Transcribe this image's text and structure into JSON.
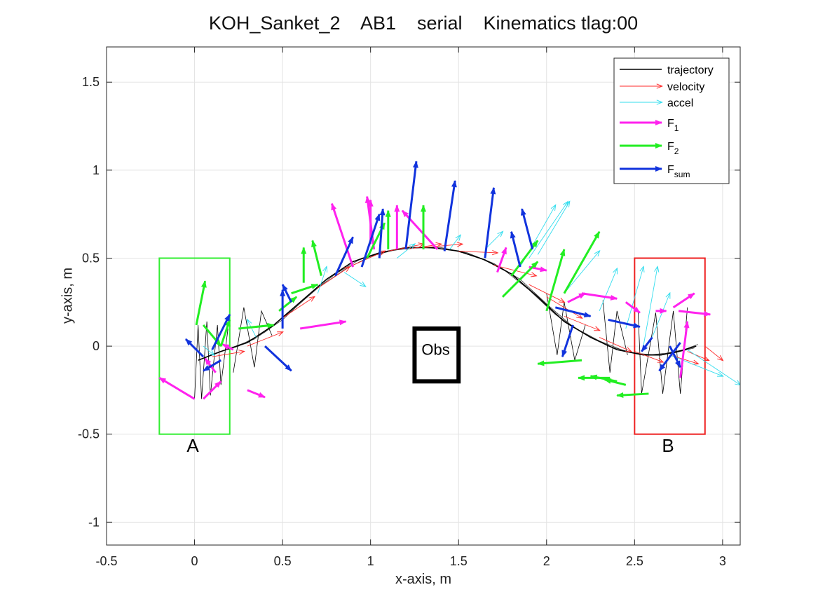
{
  "chart_data": {
    "type": "scatter",
    "title": "KOH_Sanket_2    AB1    serial    Kinematics tlag:00",
    "xlabel": "x-axis, m",
    "ylabel": "y-axis, m",
    "xlim": [
      -0.5,
      3.1
    ],
    "ylim": [
      -1.13,
      1.7
    ],
    "xticks": [
      -0.5,
      0,
      0.5,
      1,
      1.5,
      2,
      2.5,
      3
    ],
    "yticks": [
      -1,
      -0.5,
      0,
      0.5,
      1,
      1.5
    ],
    "xtick_labels": [
      "-0.5",
      "0",
      "0.5",
      "1",
      "1.5",
      "2",
      "2.5",
      "3"
    ],
    "ytick_labels": [
      "-1",
      "-0.5",
      "0",
      "0.5",
      "1",
      "1.5"
    ],
    "grid": true,
    "legend_position": "top-right",
    "legend": [
      {
        "label": "trajectory",
        "sub": "",
        "color": "#000000",
        "style": "line"
      },
      {
        "label": "velocity",
        "sub": "",
        "color": "#ff2a2a",
        "style": "arrow-thin"
      },
      {
        "label": "accel",
        "sub": "",
        "color": "#33ddee",
        "style": "arrow-thin"
      },
      {
        "label": "F",
        "sub": "1",
        "color": "#ff22ee",
        "style": "arrow-thick"
      },
      {
        "label": "F",
        "sub": "2",
        "color": "#22ee22",
        "style": "arrow-thick"
      },
      {
        "label": "F",
        "sub": "sum",
        "color": "#1133dd",
        "style": "arrow-thick"
      }
    ],
    "trajectory": {
      "x": [
        0.02,
        0.15,
        0.3,
        0.45,
        0.6,
        0.75,
        0.9,
        1.05,
        1.2,
        1.35,
        1.5,
        1.65,
        1.8,
        1.95,
        2.1,
        2.25,
        2.4,
        2.55,
        2.65,
        2.75,
        2.85
      ],
      "y": [
        -0.08,
        -0.03,
        0.02,
        0.12,
        0.25,
        0.38,
        0.48,
        0.53,
        0.56,
        0.56,
        0.54,
        0.49,
        0.41,
        0.28,
        0.14,
        0.05,
        -0.02,
        -0.05,
        -0.05,
        -0.03,
        0.0
      ]
    },
    "trajectory_bundle": [
      {
        "x": [
          0.02,
          0.12,
          0.25,
          0.4,
          0.55,
          0.7,
          0.86,
          1.0,
          1.15,
          1.3,
          1.45,
          1.6,
          1.75,
          1.9,
          2.05,
          2.2,
          2.35,
          2.5,
          2.62,
          2.72,
          2.84
        ],
        "y": [
          -0.08,
          -0.04,
          0.0,
          0.08,
          0.2,
          0.33,
          0.44,
          0.51,
          0.55,
          0.56,
          0.55,
          0.51,
          0.44,
          0.32,
          0.18,
          0.08,
          0.0,
          -0.04,
          -0.05,
          -0.04,
          -0.01
        ]
      },
      {
        "x": [
          0.02,
          0.18,
          0.34,
          0.5,
          0.65,
          0.8,
          0.95,
          1.1,
          1.25,
          1.4,
          1.55,
          1.7,
          1.85,
          2.0,
          2.15,
          2.3,
          2.45,
          2.58,
          2.68,
          2.78,
          2.86
        ],
        "y": [
          -0.08,
          -0.02,
          0.04,
          0.15,
          0.29,
          0.41,
          0.5,
          0.54,
          0.56,
          0.56,
          0.53,
          0.47,
          0.38,
          0.24,
          0.11,
          0.03,
          -0.03,
          -0.05,
          -0.04,
          -0.02,
          0.01
        ]
      }
    ],
    "sway_lines": [
      {
        "x": [
          0.0,
          0.02,
          0.04,
          0.07,
          0.09,
          0.13,
          0.15,
          0.19
        ],
        "y": [
          -0.3,
          0.12,
          -0.3,
          0.14,
          -0.28,
          0.12,
          -0.22,
          0.1
        ]
      },
      {
        "x": [
          0.22,
          0.28,
          0.34,
          0.38,
          0.44
        ],
        "y": [
          -0.15,
          0.22,
          -0.12,
          0.2,
          0.06
        ]
      },
      {
        "x": [
          2.0,
          2.06,
          2.1,
          2.16,
          2.22
        ],
        "y": [
          0.3,
          -0.05,
          0.25,
          -0.08,
          0.12
        ]
      },
      {
        "x": [
          2.32,
          2.36,
          2.4,
          2.46
        ],
        "y": [
          0.26,
          -0.15,
          0.2,
          -0.05
        ]
      },
      {
        "x": [
          2.52,
          2.54,
          2.62,
          2.66,
          2.72,
          2.76,
          2.8
        ],
        "y": [
          0.19,
          -0.27,
          0.19,
          -0.27,
          0.2,
          -0.27,
          0.22
        ]
      }
    ],
    "vectors": [
      {
        "series": "velocity",
        "x": [
          0.1,
          0.3,
          0.5,
          0.7,
          0.9,
          1.1,
          1.3,
          1.5,
          1.7,
          1.9,
          2.1,
          2.3,
          2.5,
          2.7,
          2.8,
          2.9,
          1.2,
          2.0
        ],
        "y": [
          -0.06,
          0.0,
          0.16,
          0.33,
          0.46,
          0.54,
          0.56,
          0.54,
          0.46,
          0.35,
          0.17,
          0.05,
          -0.03,
          -0.05,
          -0.03,
          0.0,
          0.55,
          0.28
        ],
        "u": [
          0.18,
          0.2,
          0.18,
          0.18,
          0.18,
          0.2,
          0.22,
          0.22,
          0.24,
          0.2,
          0.2,
          0.18,
          0.16,
          0.16,
          0.12,
          0.1,
          0.2,
          0.2
        ],
        "v": [
          0.03,
          0.08,
          0.12,
          0.12,
          0.08,
          0.04,
          0.02,
          -0.01,
          -0.06,
          -0.1,
          -0.08,
          -0.08,
          -0.06,
          -0.05,
          -0.05,
          -0.08,
          0.03,
          -0.12
        ]
      },
      {
        "series": "accel",
        "x": [
          0.05,
          0.35,
          0.7,
          0.85,
          1.15,
          1.45,
          1.65,
          1.85,
          1.9,
          1.95,
          2.1,
          2.3,
          2.45,
          2.55,
          2.7,
          2.8,
          2.6
        ],
        "y": [
          0.0,
          0.05,
          0.3,
          0.42,
          0.5,
          0.55,
          0.55,
          0.45,
          0.5,
          0.52,
          0.3,
          0.2,
          0.1,
          0.0,
          -0.05,
          -0.02,
          0.05
        ],
        "u": [
          0.06,
          -0.05,
          0.05,
          0.12,
          0.1,
          0.06,
          0.1,
          0.2,
          0.22,
          0.18,
          0.2,
          0.1,
          0.1,
          0.08,
          0.3,
          0.3,
          0.1
        ],
        "v": [
          -0.05,
          0.1,
          0.15,
          -0.08,
          0.08,
          0.08,
          0.1,
          0.35,
          0.32,
          0.3,
          0.24,
          0.24,
          0.35,
          0.45,
          -0.12,
          -0.2,
          0.25
        ]
      },
      {
        "series": "F1",
        "x": [
          0.0,
          0.05,
          0.12,
          0.22,
          0.3,
          0.6,
          1.02,
          1.15,
          1.38,
          1.72,
          1.9,
          2.12,
          2.2,
          2.45,
          2.62,
          2.72,
          2.75,
          2.76,
          1.0,
          0.9
        ],
        "y": [
          -0.3,
          -0.3,
          -0.15,
          -0.02,
          -0.25,
          0.1,
          0.55,
          0.55,
          0.55,
          0.42,
          0.45,
          0.25,
          0.3,
          0.25,
          0.2,
          0.22,
          0.2,
          -0.18,
          0.58,
          0.45
        ],
        "u": [
          -0.2,
          0.1,
          -0.06,
          -0.06,
          0.1,
          0.26,
          -0.04,
          0.0,
          -0.2,
          0.05,
          0.1,
          0.1,
          0.2,
          0.08,
          0.06,
          0.12,
          0.18,
          0.04,
          0.0,
          -0.12
        ],
        "v": [
          0.12,
          0.1,
          0.08,
          0.03,
          -0.04,
          0.04,
          0.3,
          0.25,
          0.22,
          0.14,
          -0.02,
          0.05,
          -0.03,
          -0.06,
          0.0,
          0.08,
          -0.02,
          0.32,
          0.25,
          0.36
        ]
      },
      {
        "series": "F2",
        "x": [
          0.01,
          0.05,
          0.15,
          0.25,
          0.48,
          0.55,
          0.72,
          0.98,
          1.1,
          1.3,
          1.75,
          1.8,
          2.0,
          2.1,
          2.2,
          2.36,
          2.4,
          2.45,
          2.58,
          0.62
        ],
        "y": [
          0.12,
          0.12,
          0.0,
          0.1,
          0.2,
          0.3,
          0.4,
          0.5,
          0.55,
          0.55,
          0.28,
          0.4,
          0.2,
          0.3,
          -0.08,
          -0.18,
          -0.2,
          -0.22,
          -0.27,
          0.36
        ],
        "u": [
          0.05,
          0.1,
          0.05,
          0.2,
          0.1,
          0.15,
          -0.05,
          0.1,
          0.0,
          0.0,
          0.2,
          0.15,
          0.1,
          0.2,
          -0.25,
          -0.18,
          -0.15,
          -0.12,
          -0.18,
          0.0
        ],
        "v": [
          0.25,
          -0.12,
          0.15,
          0.02,
          0.08,
          0.05,
          0.2,
          0.2,
          0.22,
          0.25,
          0.2,
          0.2,
          0.35,
          0.35,
          -0.02,
          0.0,
          0.03,
          0.03,
          -0.01,
          0.2
        ]
      },
      {
        "series": "Fsum",
        "x": [
          0.05,
          0.1,
          0.15,
          0.4,
          0.55,
          0.8,
          0.95,
          1.05,
          1.2,
          1.42,
          1.65,
          1.85,
          1.92,
          2.05,
          2.15,
          2.35,
          2.6,
          2.7,
          2.76,
          0.5
        ],
        "y": [
          -0.06,
          -0.02,
          -0.08,
          0.0,
          0.25,
          0.4,
          0.45,
          0.5,
          0.55,
          0.54,
          0.5,
          0.45,
          0.55,
          0.22,
          0.12,
          0.15,
          0.05,
          0.0,
          0.02,
          0.1
        ],
        "u": [
          -0.1,
          0.1,
          -0.1,
          0.15,
          -0.05,
          0.1,
          0.1,
          0.02,
          0.06,
          0.06,
          0.05,
          -0.05,
          -0.06,
          0.2,
          -0.06,
          0.18,
          -0.06,
          0.06,
          -0.12,
          0.0
        ],
        "v": [
          0.1,
          0.2,
          -0.06,
          -0.14,
          0.1,
          0.22,
          0.3,
          0.28,
          0.5,
          0.4,
          0.4,
          0.2,
          0.23,
          -0.05,
          -0.18,
          -0.04,
          -0.08,
          -0.12,
          -0.16,
          0.22
        ]
      }
    ],
    "vector_colors": {
      "velocity": "#ff2a2a",
      "accel": "#33ddee",
      "F1": "#ff22ee",
      "F2": "#22ee22",
      "Fsum": "#1133dd"
    },
    "regions": [
      {
        "name": "start-region-A",
        "label": "A",
        "x0": -0.2,
        "x1": 0.2,
        "y0": -0.5,
        "y1": 0.5,
        "color": "#33ee33",
        "label_x": -0.01,
        "label_y": -0.6
      },
      {
        "name": "goal-region-B",
        "label": "B",
        "x0": 2.5,
        "x1": 2.9,
        "y0": -0.5,
        "y1": 0.5,
        "color": "#ee2222",
        "label_x": 2.69,
        "label_y": -0.6
      }
    ],
    "obstacle": {
      "label": "Obs",
      "x0": 1.25,
      "x1": 1.5,
      "y0": -0.2,
      "y1": 0.1,
      "color": "#000000",
      "label_x": 1.37,
      "label_y": -0.05
    }
  }
}
